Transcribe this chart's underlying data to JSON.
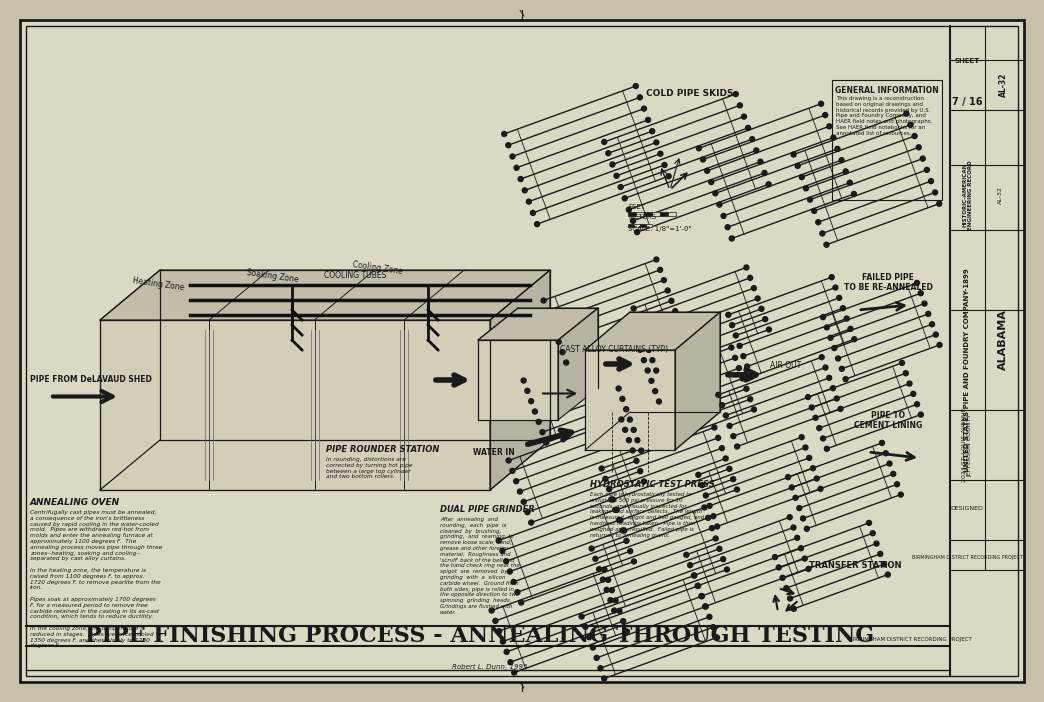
{
  "bg_color": "#c8c0a8",
  "paper_color": "#ddd8c4",
  "line_color": "#1a1a1a",
  "title_text": "PIPE FINISHING PROCESS - ANNEALING THROUGH TESTING",
  "general_info_title": "GENERAL INFORMATION",
  "general_info_body": "This drawing is a reconstruction\nbased on original drawings and\nhistorical records provided by U.S.\nPipe and Foundry Company, and\nHAER field notes and photographs.\nSee HAER field notebooks for an\nannotated list of resources.",
  "state_text": "ALABAMA",
  "company_text": "UNITED STATES PIPE AND FOUNDRY COMPANY-1899",
  "address_line1": "2023 ST. LOUIS AVENUE",
  "address_line2": "JEFFERSON COUNTY",
  "project_text": "BIRMINGHAM DISTRICT RECORDING PROJECT",
  "haer_text": "HISTORIC-AMERICAN\nENGINEERING RECORD",
  "scale_text": "SCALE: 1/8\"=1'-0\"",
  "sheet_text": "SHEET",
  "sheet_num": "7 / 16",
  "haer_num": "AL-32",
  "anneal_oven_title": "ANNEALING OVEN",
  "anneal_oven_body": "Centrifugally cast pipes must be annealed,\na consequence of the iron's brittleness\ncaused by rapid cooling in the water-cooled\nmold.  Pipes are withdrawn red-hot from\nmolds and enter the annealing furnace at\napproximately 1100 degrees F.  The\nannealing process moves pipe through three\nzones--heating, soaking and cooling--\nseparated by cast alloy curtains.\n\nIn the heating zone, the temperature is\nraised from 1100 degrees F. to approx.\n1720 degrees F. to remove pearlite from the\niron.\n\nPipes soak at approximately 1700 degrees\nF. for a measured period to remove free\ncarbide retained in the casting in its as-cast\ncondition, which tends to reduce ductility.\n\nIn the cooling zone, the temperature is\nreduced in stages.  Pipes are force-cooled to\n1350 degrees F. and then slowly to 1280\ndegrees F.",
  "pipe_rounder_title": "PIPE ROUNDER STATION",
  "pipe_rounder_body": "In rounding, distortions are\ncorrected by turning hot pipe\nbetween a large top cylinder\nand two bottom rollers.",
  "dual_grinder_title": "DUAL PIPE GRINDER",
  "dual_grinder_body": "After  annealing  and\nrounding,  each  pipe  is\ncleaned  by  brushing,\ngrinding,  and  reaming  to\nremove loose scale, sand,\ngrease and other foreign\nmaterial.  Roughness and\n'scruff' back of the bell and\nthe hand check ring near the\nspigot  are  removed  by\ngrinding  with  a  silicon\ncarbide wheel.  Ground from\nboth sides, pipe is rolled in\nthe opposite direction to two\nspinning  grinding  heads.\nGrindings are flushed with\nwater.",
  "hydro_test_title": "HYDROSTATIC TEST PRESS",
  "hydro_test_body": "Each pipe is hydrostatically tested to\nwithstand 500 psi pressure for 10\nseconds, and visually inspected for\nleakage and surface defects.  The length\nis measured, spigot and bell gauged, and\nhardness readings taken.  Pipe is then\nweighed and classified.  Failed pipe is\nreturned to annealing ovens.",
  "label_pipe_from": "PIPE FROM DeLAVAUD SHED",
  "label_heating": "Heating Zone",
  "label_soaking": "Soaking Zone",
  "label_cooling": "Cooling Zone",
  "label_cooling_tubes": "COOLING TUBES",
  "label_cast_alloy": "CAST ALLOY CURTAINS (TYP)",
  "label_cold_skids": "COLD PIPE SKIDS",
  "label_failed": "FAILED PIPE\nTO BE RE-ANNEALED",
  "label_air_out": "AIR OUT",
  "label_water_in": "WATER IN",
  "label_cement": "PIPE TO\nCEMENT LINING",
  "label_transfer": "TRANSFER STATION",
  "label_feet": "FEET",
  "label_meters": "METERS",
  "dunn_credit": "Robert L. Dunn, 1995",
  "designer_label": "DESIGNED"
}
